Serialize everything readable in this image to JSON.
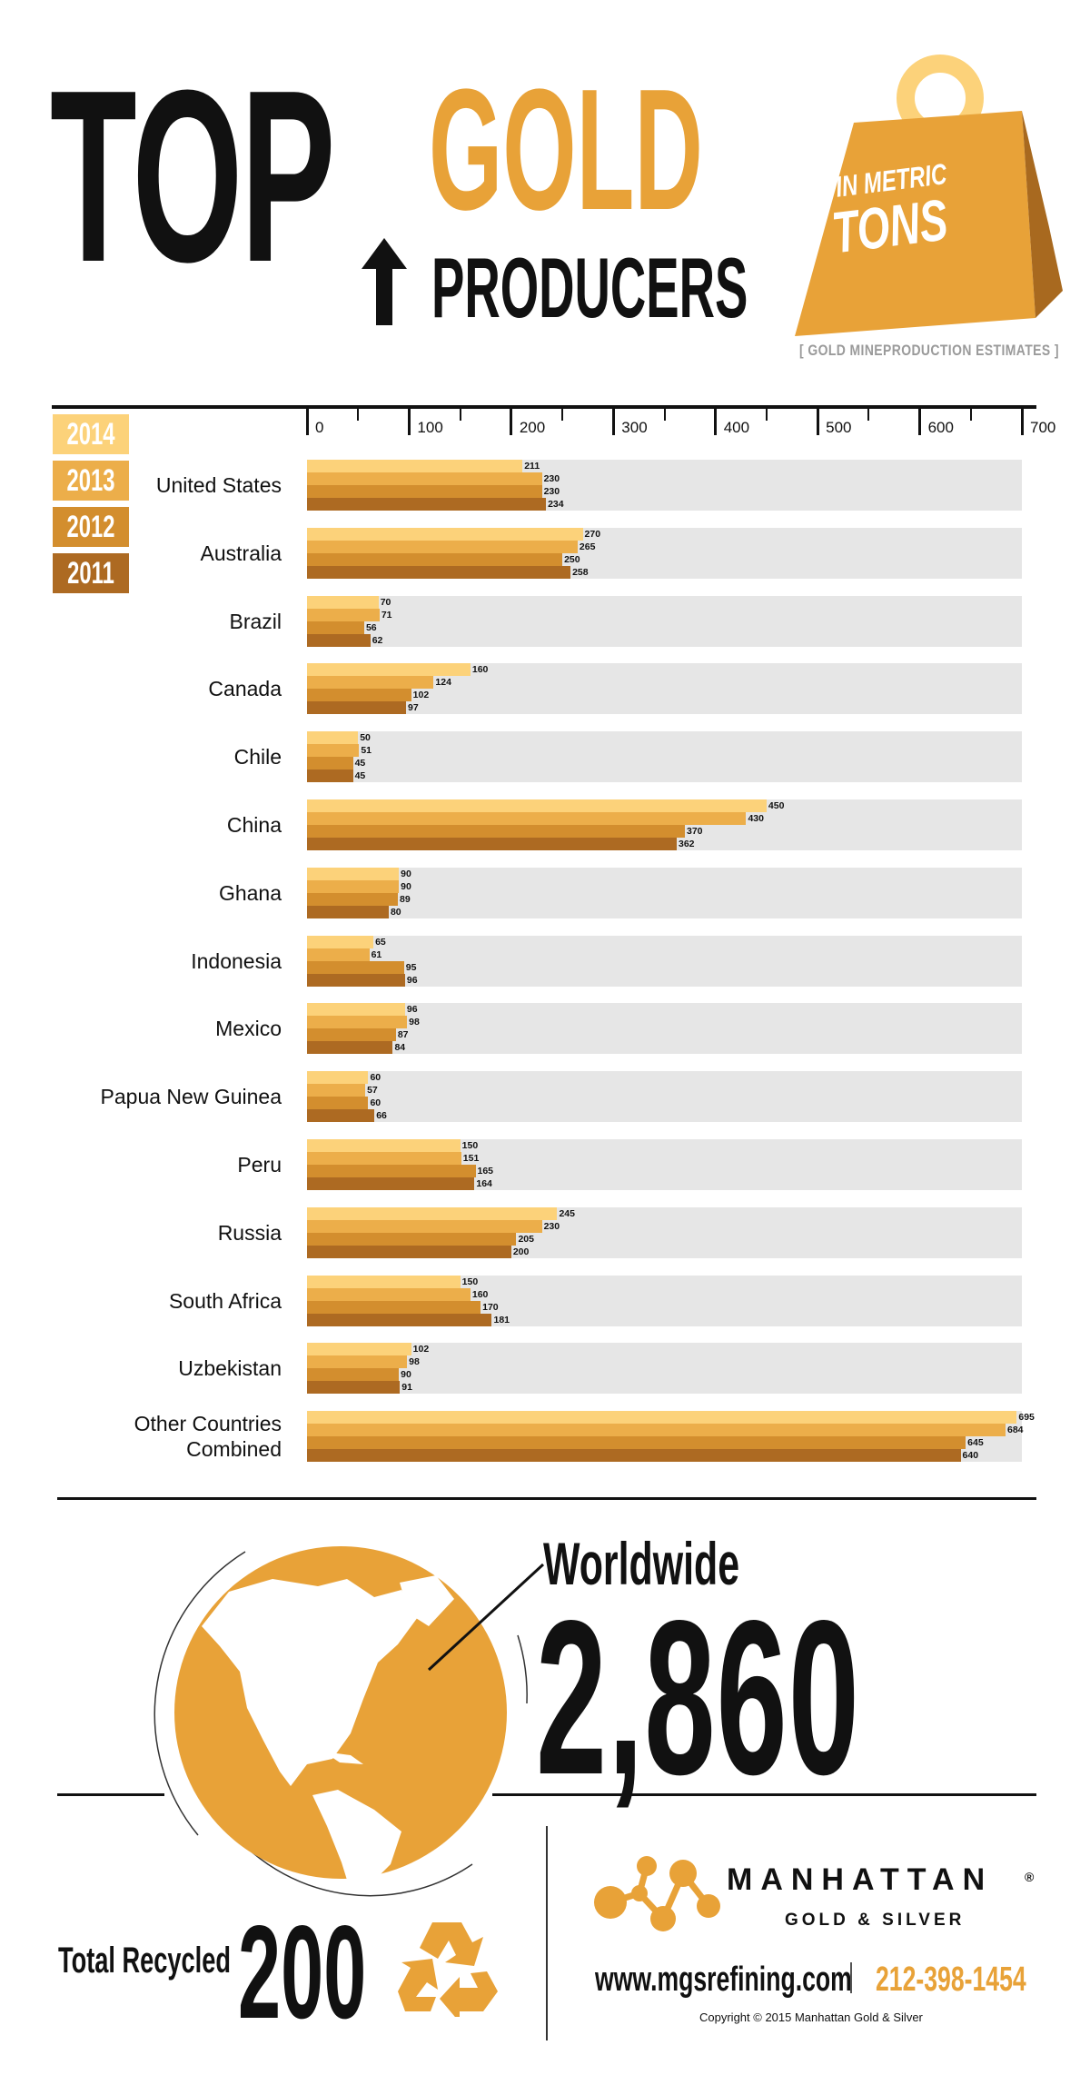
{
  "header": {
    "top": "TOP",
    "gold": "GOLD",
    "producers": "PRODUCERS",
    "weight_line1": "IN METRIC",
    "weight_line2": "TONS",
    "subtitle": "[ GOLD MINEPRODUCTION ESTIMATES ]"
  },
  "colors": {
    "y2014": "#fcd27a",
    "y2013": "#ecae4a",
    "y2012": "#d38e2e",
    "y2011": "#ad6a22",
    "gold": "#e8a238",
    "track": "#e6e6e6"
  },
  "legend": [
    "2014",
    "2013",
    "2012",
    "2011"
  ],
  "chart_data": {
    "type": "bar",
    "orientation": "horizontal",
    "xlim": [
      0,
      700
    ],
    "ticks": [
      0,
      100,
      200,
      300,
      400,
      500,
      600,
      700
    ],
    "series_names": [
      "2014",
      "2013",
      "2012",
      "2011"
    ],
    "categories": [
      "United States",
      "Australia",
      "Brazil",
      "Canada",
      "Chile",
      "China",
      "Ghana",
      "Indonesia",
      "Mexico",
      "Papua New Guinea",
      "Peru",
      "Russia",
      "South Africa",
      "Uzbekistan",
      "Other Countries\nCombined"
    ],
    "series": [
      {
        "name": "2014",
        "values": [
          211,
          270,
          70,
          160,
          50,
          450,
          90,
          65,
          96,
          60,
          150,
          245,
          150,
          102,
          695
        ]
      },
      {
        "name": "2013",
        "values": [
          230,
          265,
          71,
          124,
          51,
          430,
          90,
          61,
          98,
          57,
          151,
          230,
          160,
          98,
          684
        ]
      },
      {
        "name": "2012",
        "values": [
          230,
          250,
          56,
          102,
          45,
          370,
          89,
          95,
          87,
          60,
          165,
          205,
          170,
          90,
          645
        ]
      },
      {
        "name": "2011",
        "values": [
          234,
          258,
          62,
          97,
          45,
          362,
          80,
          96,
          84,
          66,
          164,
          200,
          181,
          91,
          640
        ]
      }
    ]
  },
  "worldwide": {
    "label": "Worldwide",
    "value": "2,860"
  },
  "recycled": {
    "label": "Total Recycled",
    "value": "200"
  },
  "brand": {
    "name": "MANHATTAN",
    "reg": "®",
    "sub": "GOLD & SILVER",
    "web": "www.mgsrefining.com",
    "phone": "212-398-1454",
    "copyright": "Copyright © 2015 Manhattan Gold & Silver"
  }
}
